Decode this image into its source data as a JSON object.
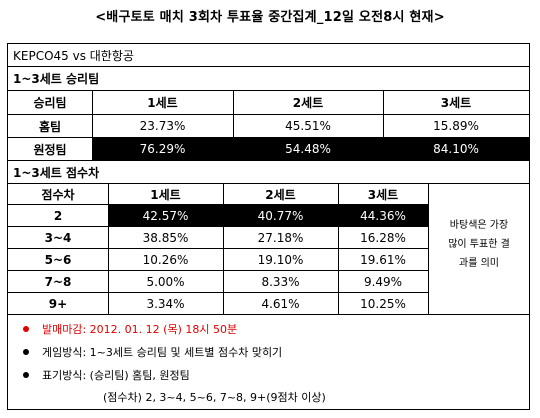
{
  "title": "<배구토토 매치 3회차 투표율 중간집계_12일 오전8시 현재>",
  "match_title": "KEPCO45 vs 대한항공",
  "win_section": {
    "title": "1~3세트 승리팀",
    "header": [
      "승리팀",
      "1세트",
      "2세트",
      "3세트"
    ],
    "rows": [
      {
        "label": "홈팀",
        "values": [
          "23.73%",
          "45.51%",
          "15.89%"
        ]
      },
      {
        "label": "원정팀",
        "values": [
          "76.29%",
          "54.48%",
          "84.10%"
        ]
      }
    ]
  },
  "score_section": {
    "title": "1~3세트 점수차",
    "header": [
      "점수차",
      "1세트",
      "2세트",
      "3세트"
    ],
    "rows": [
      {
        "label": "2",
        "values": [
          "42.57%",
          "40.77%",
          "44.36%"
        ]
      },
      {
        "label": "3~4",
        "values": [
          "38.85%",
          "27.18%",
          "16.28%"
        ]
      },
      {
        "label": "5~6",
        "values": [
          "10.26%",
          "19.10%",
          "19.61%"
        ]
      },
      {
        "label": "7~8",
        "values": [
          "5.00%",
          "8.33%",
          "9.49%"
        ]
      },
      {
        "label": "9+",
        "values": [
          "3.34%",
          "4.61%",
          "10.25%"
        ]
      }
    ],
    "note_lines": [
      "바탕색은 가장",
      "많이 투표한 결",
      "과를 의미"
    ]
  },
  "info": {
    "deadline": "발매마감: 2012. 01. 12 (목) 18시 50분",
    "method": "게임방식: 1~3세트 승리팀 및 세트별 점수차 맞히기",
    "notation": "표기방식: (승리팀) 홈팀, 원정팀",
    "notation_sub": "(점수차) 2, 3~4, 5~6, 7~8, 9+(9점차 이상)"
  },
  "colors": {
    "highlight_bg": "#000000",
    "highlight_text": "#ffffff",
    "deadline": "#e00000"
  }
}
